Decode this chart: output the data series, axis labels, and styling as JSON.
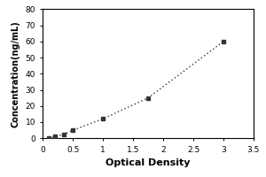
{
  "x_data": [
    0.1,
    0.2,
    0.35,
    0.5,
    1.0,
    1.75,
    3.0
  ],
  "y_data": [
    0.0,
    1.0,
    2.5,
    5.0,
    12.0,
    25.0,
    60.0
  ],
  "xlabel": "Optical Density",
  "ylabel": "Concentration(ng/mL)",
  "xlim": [
    0,
    3.5
  ],
  "ylim": [
    0,
    80
  ],
  "xticks": [
    0,
    0.5,
    1.0,
    1.5,
    2.0,
    2.5,
    3.0,
    3.5
  ],
  "xtick_labels": [
    "0",
    "0.5",
    "1",
    "1.5",
    "2",
    "2.5",
    "3",
    "3.5"
  ],
  "yticks": [
    0,
    10,
    20,
    30,
    40,
    50,
    60,
    70,
    80
  ],
  "ytick_labels": [
    "0",
    "10",
    "20",
    "30",
    "40",
    "50",
    "60",
    "70",
    "80"
  ],
  "line_color": "#333333",
  "marker_color": "#333333",
  "background_color": "#ffffff",
  "figure_background": "#ffffff",
  "xlabel_fontsize": 8,
  "ylabel_fontsize": 7,
  "tick_fontsize": 6.5
}
